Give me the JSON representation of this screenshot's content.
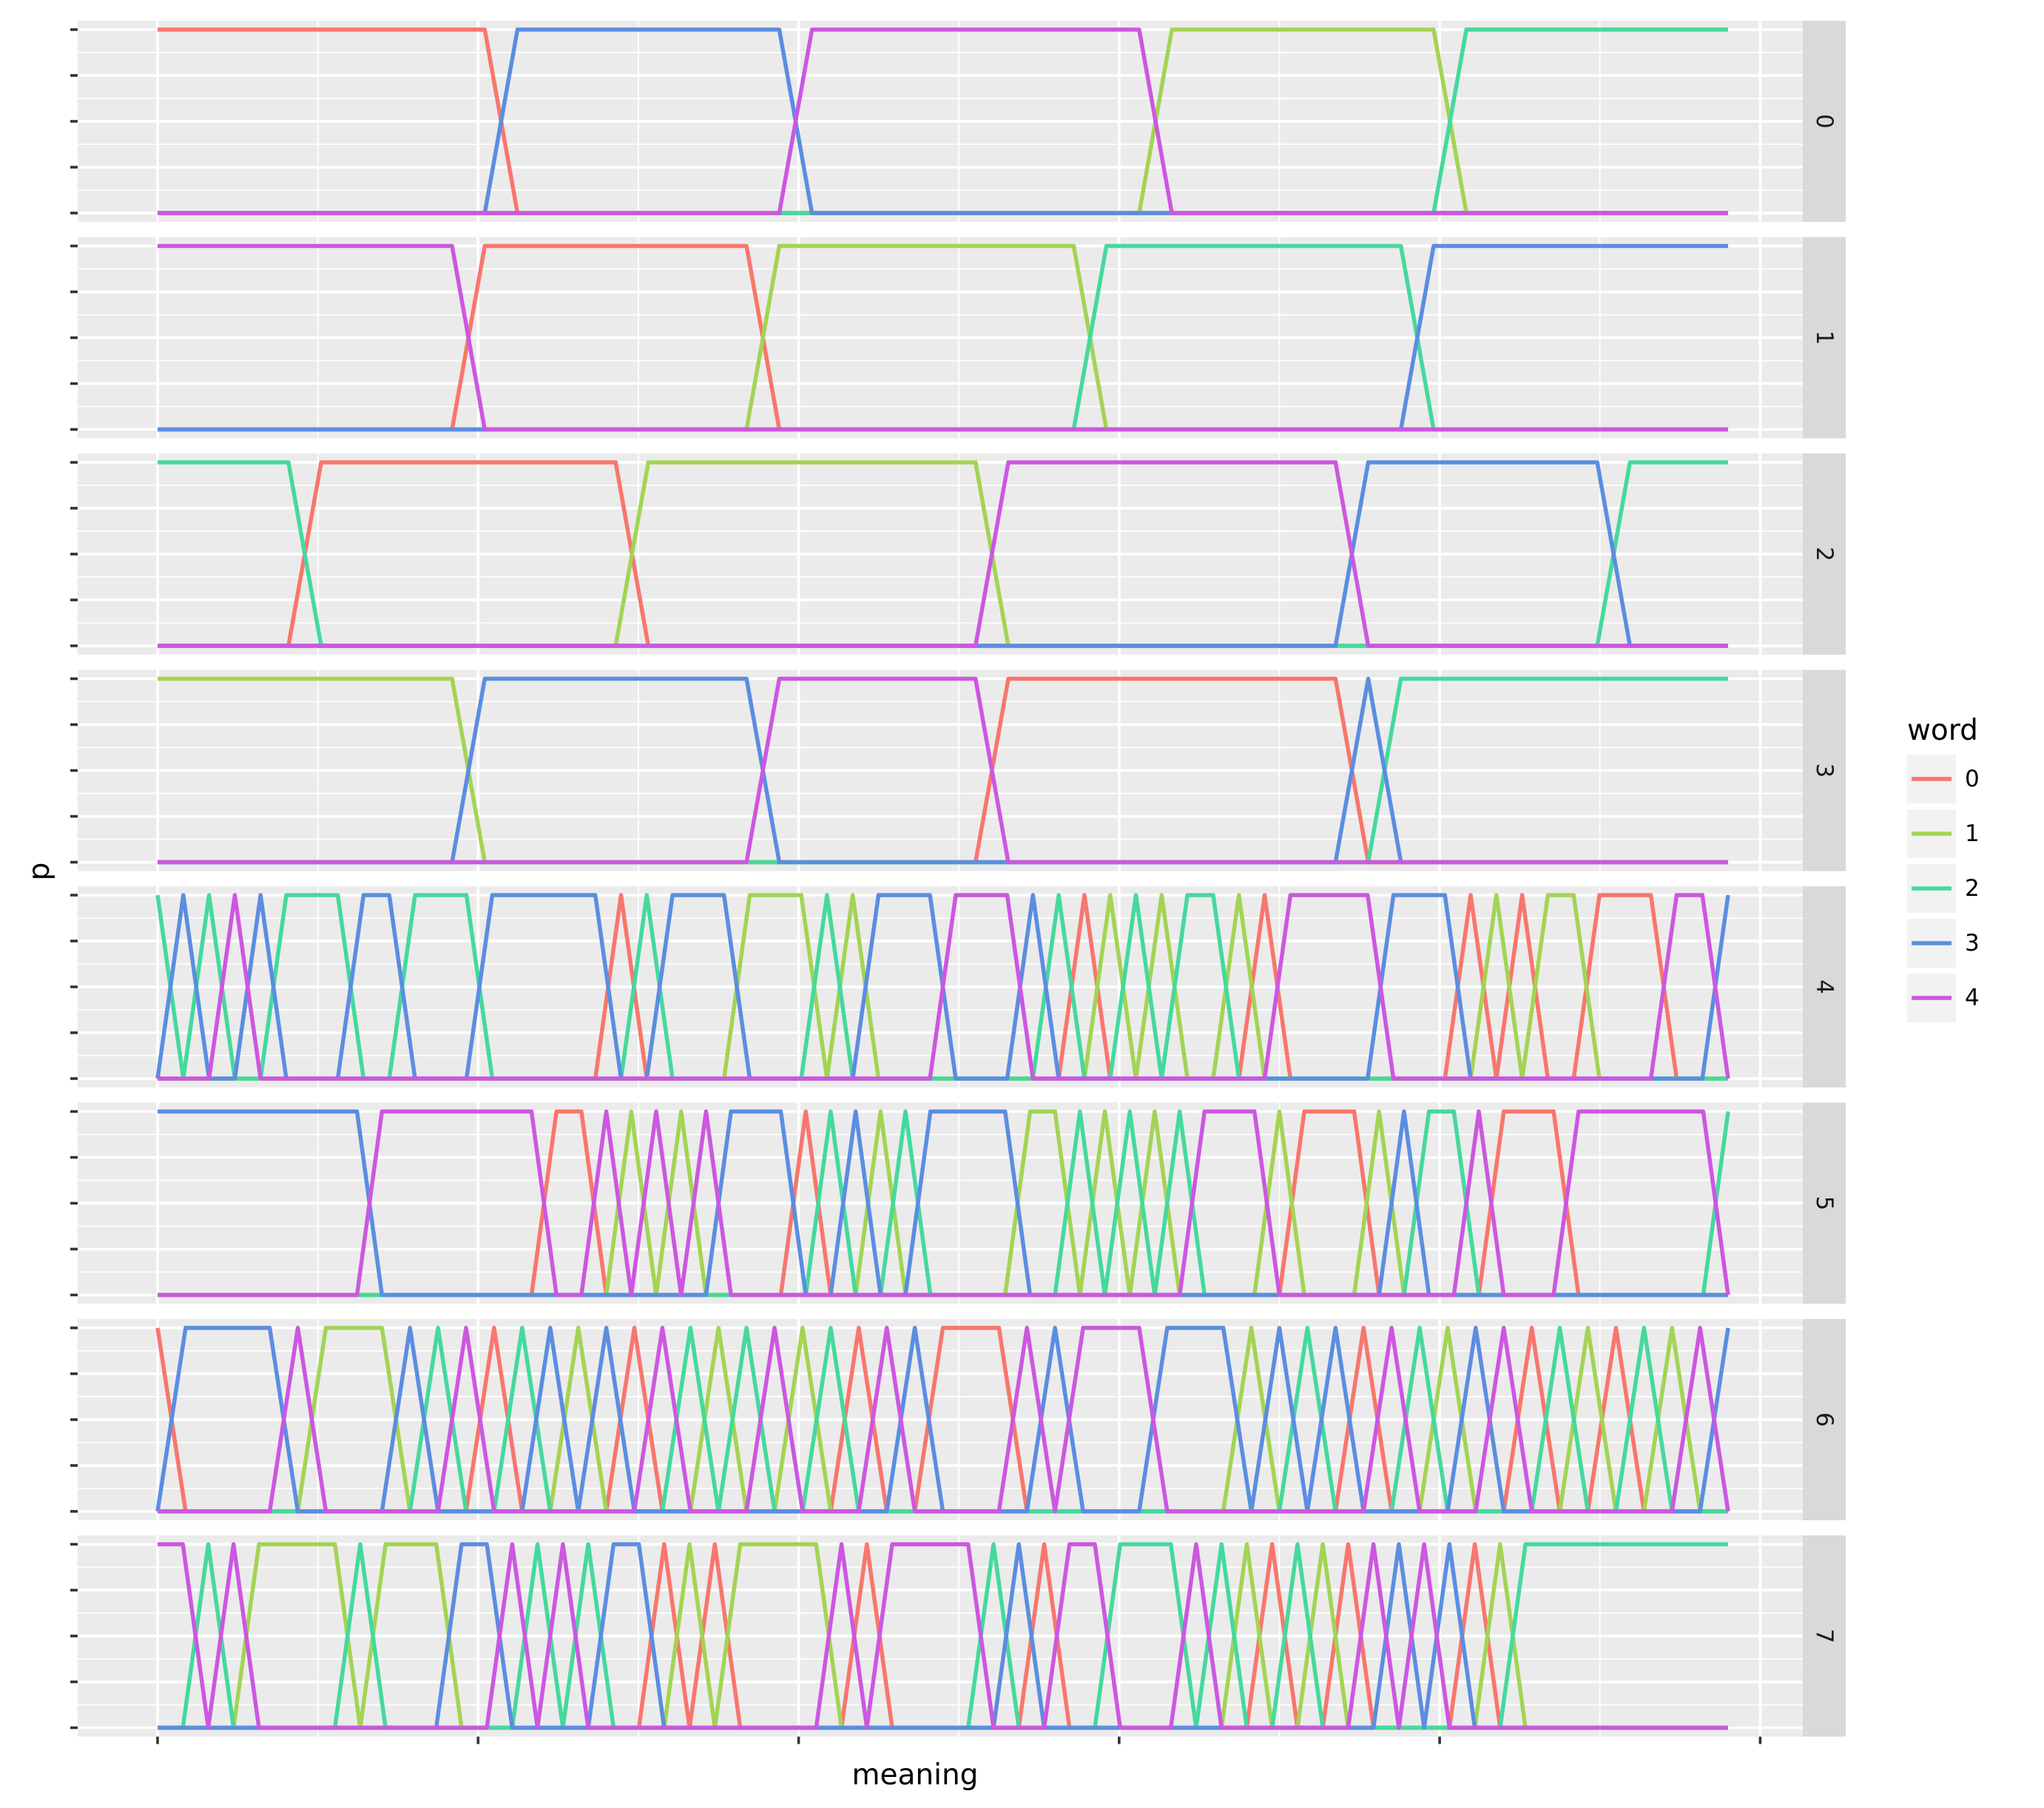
{
  "chart_data": {
    "type": "line",
    "xlabel": "meaning",
    "ylabel": "p",
    "ylim": [
      0,
      1
    ],
    "xlim": [
      0,
      48
    ],
    "x_major_breaks": [
      0,
      10,
      20,
      30,
      40,
      50
    ],
    "x_range": [
      0,
      49
    ],
    "grid": true,
    "legend": {
      "title": "word",
      "position": "right",
      "entries": [
        "0",
        "1",
        "2",
        "3",
        "4"
      ]
    },
    "colors": {
      "0": "#F8766D",
      "1": "#A3D454",
      "2": "#45D99D",
      "3": "#5B8DE1",
      "4": "#CC57E0"
    },
    "facets": [
      {
        "label": "0",
        "words": [
          0,
          0,
          0,
          0,
          0,
          0,
          0,
          0,
          0,
          0,
          0,
          3,
          3,
          3,
          3,
          3,
          3,
          3,
          3,
          3,
          4,
          4,
          4,
          4,
          4,
          4,
          4,
          4,
          4,
          4,
          4,
          1,
          1,
          1,
          1,
          1,
          1,
          1,
          1,
          1,
          2,
          2,
          2,
          2,
          2,
          2,
          2,
          2,
          2
        ]
      },
      {
        "label": "1",
        "words": [
          4,
          4,
          4,
          4,
          4,
          4,
          4,
          4,
          4,
          4,
          0,
          0,
          0,
          0,
          0,
          0,
          0,
          0,
          0,
          1,
          1,
          1,
          1,
          1,
          1,
          1,
          1,
          1,
          1,
          2,
          2,
          2,
          2,
          2,
          2,
          2,
          2,
          2,
          2,
          3,
          3,
          3,
          3,
          3,
          3,
          3,
          3,
          3,
          3
        ]
      },
      {
        "label": "2",
        "words": [
          2,
          2,
          2,
          2,
          2,
          0,
          0,
          0,
          0,
          0,
          0,
          0,
          0,
          0,
          0,
          1,
          1,
          1,
          1,
          1,
          1,
          1,
          1,
          1,
          1,
          1,
          4,
          4,
          4,
          4,
          4,
          4,
          4,
          4,
          4,
          4,
          4,
          3,
          3,
          3,
          3,
          3,
          3,
          3,
          3,
          2,
          2,
          2,
          2
        ]
      },
      {
        "label": "3",
        "words": [
          1,
          1,
          1,
          1,
          1,
          1,
          1,
          1,
          1,
          1,
          3,
          3,
          3,
          3,
          3,
          3,
          3,
          3,
          3,
          4,
          4,
          4,
          4,
          4,
          4,
          4,
          0,
          0,
          0,
          0,
          0,
          0,
          0,
          0,
          0,
          0,
          0,
          3,
          2,
          2,
          2,
          2,
          2,
          2,
          2,
          2,
          2,
          2,
          2
        ]
      },
      {
        "label": "4",
        "words": [
          2,
          3,
          2,
          4,
          3,
          2,
          2,
          2,
          3,
          3,
          2,
          2,
          2,
          3,
          3,
          3,
          3,
          3,
          0,
          2,
          3,
          3,
          3,
          1,
          1,
          1,
          2,
          1,
          3,
          3,
          3,
          4,
          4,
          4,
          3,
          2,
          0,
          1,
          2,
          1,
          2,
          2,
          1,
          0,
          4,
          4,
          4,
          4,
          3,
          3,
          3,
          0,
          1,
          0,
          1,
          1,
          0,
          0,
          0,
          4,
          4,
          3
        ]
      },
      {
        "label": "5",
        "words": [
          3,
          3,
          3,
          3,
          3,
          3,
          3,
          3,
          3,
          4,
          4,
          4,
          4,
          4,
          4,
          4,
          0,
          0,
          4,
          1,
          4,
          1,
          4,
          3,
          3,
          3,
          0,
          2,
          3,
          1,
          2,
          3,
          3,
          3,
          3,
          1,
          1,
          2,
          1,
          2,
          1,
          2,
          4,
          4,
          4,
          1,
          0,
          0,
          0,
          1,
          3,
          2,
          2,
          4,
          0,
          0,
          0,
          4,
          4,
          4,
          4,
          4,
          4,
          2
        ]
      },
      {
        "label": "6",
        "words": [
          0,
          3,
          3,
          3,
          3,
          4,
          1,
          1,
          1,
          3,
          2,
          4,
          0,
          2,
          3,
          1,
          3,
          0,
          4,
          2,
          1,
          2,
          4,
          1,
          2,
          0,
          4,
          3,
          0,
          0,
          0,
          4,
          3,
          4,
          4,
          4,
          3,
          3,
          3,
          1,
          3,
          2,
          3,
          0,
          4,
          2,
          1,
          3,
          4,
          0,
          2,
          1,
          0,
          2,
          1,
          4,
          3
        ]
      },
      {
        "label": "7",
        "words": [
          4,
          4,
          2,
          4,
          1,
          1,
          1,
          1,
          2,
          1,
          1,
          1,
          3,
          3,
          4,
          2,
          4,
          2,
          3,
          3,
          0,
          1,
          0,
          1,
          1,
          1,
          1,
          4,
          0,
          4,
          4,
          4,
          4,
          2,
          3,
          0,
          4,
          4,
          2,
          2,
          2,
          4,
          2,
          1,
          0,
          2,
          1,
          0,
          4,
          3,
          4,
          3,
          0,
          1,
          2,
          2,
          2,
          2,
          2,
          2,
          2,
          2,
          2
        ]
      }
    ]
  }
}
